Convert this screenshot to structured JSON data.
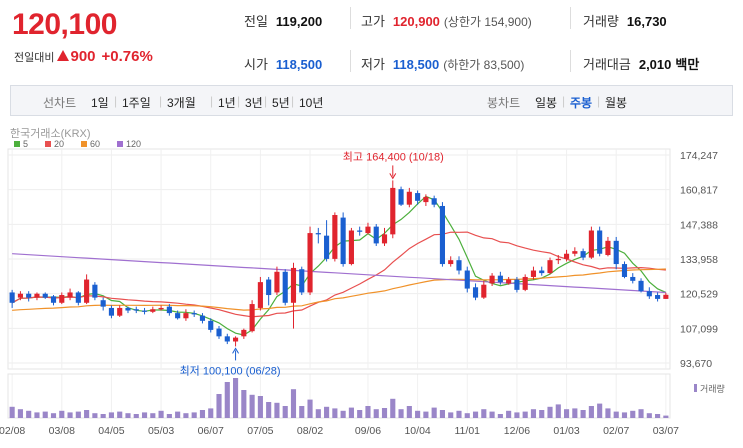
{
  "quote": {
    "price": "120,100",
    "change_label": "전일대비",
    "change": "900",
    "change_pct": "+0.76%"
  },
  "stats": {
    "prev_label": "전일",
    "prev": "119,200",
    "high_label": "고가",
    "high": "120,900",
    "upper_limit": "(상한가 154,900)",
    "volume_label": "거래량",
    "volume": "16,730",
    "open_label": "시가",
    "open": "118,500",
    "low_label": "저가",
    "low": "118,500",
    "lower_limit": "(하한가 83,500)",
    "amount_label": "거래대금",
    "amount": "2,010",
    "amount_unit": "백만"
  },
  "toolbar": {
    "line_chart_label": "선차트",
    "periods": [
      "1일",
      "1주일",
      "3개월",
      "1년",
      "3년",
      "5년",
      "10년"
    ],
    "candle_label": "봉차트",
    "candles": [
      "일봉",
      "주봉",
      "월봉"
    ],
    "active_candle": "주봉"
  },
  "colors": {
    "up": "#e0242e",
    "down": "#1a5fd0",
    "ma5": "#4caf3c",
    "ma20": "#e85050",
    "ma60": "#f0922a",
    "ma120": "#a070d0"
  },
  "chart_data": {
    "type": "candlestick",
    "source_label": "한국거래소(KRX)",
    "legend": [
      {
        "name": "5",
        "color": "#4caf3c"
      },
      {
        "name": "20",
        "color": "#e85050"
      },
      {
        "name": "60",
        "color": "#f0922a"
      },
      {
        "name": "120",
        "color": "#a070d0"
      }
    ],
    "volume_legend": "거래량",
    "y_ticks": [
      "174,247",
      "160,817",
      "147,388",
      "133,958",
      "120,529",
      "107,099",
      "93,670"
    ],
    "ylim": [
      93670,
      174247
    ],
    "x_ticks": [
      "02/08",
      "03/08",
      "04/05",
      "05/03",
      "06/07",
      "07/05",
      "08/02",
      "09/06",
      "10/04",
      "11/01",
      "12/06",
      "01/03",
      "02/07",
      "03/07"
    ],
    "max_annotation": "최고 164,400 (10/18)",
    "min_annotation": "최저 100,100 (06/28)",
    "candles": [
      [
        121000,
        117000,
        122000,
        115000
      ],
      [
        119000,
        120500,
        121500,
        118000
      ],
      [
        120500,
        119000,
        121500,
        117500
      ],
      [
        119000,
        120500,
        121000,
        118000
      ],
      [
        120500,
        119000,
        121000,
        118500
      ],
      [
        119500,
        117000,
        120000,
        116000
      ],
      [
        117000,
        120000,
        121000,
        116500
      ],
      [
        119000,
        121000,
        122500,
        118000
      ],
      [
        121000,
        117000,
        121500,
        116000
      ],
      [
        117000,
        126000,
        128000,
        116500
      ],
      [
        124000,
        119000,
        125000,
        118000
      ],
      [
        118000,
        115500,
        119000,
        114000
      ],
      [
        115000,
        112000,
        116000,
        111000
      ],
      [
        112000,
        115000,
        116000,
        111500
      ],
      [
        115000,
        114000,
        115500,
        113000
      ],
      [
        114500,
        114000,
        115500,
        113000
      ],
      [
        114000,
        113500,
        115000,
        112500
      ],
      [
        113500,
        114500,
        115500,
        113000
      ],
      [
        114500,
        115000,
        116000,
        114000
      ],
      [
        115500,
        113000,
        116500,
        112000
      ],
      [
        113000,
        111000,
        114000,
        110500
      ],
      [
        111000,
        113000,
        114500,
        110000
      ],
      [
        113000,
        112500,
        114000,
        111500
      ],
      [
        112000,
        110000,
        113000,
        109000
      ],
      [
        110000,
        106500,
        111000,
        105500
      ],
      [
        107000,
        104000,
        108000,
        103000
      ],
      [
        104000,
        102000,
        105000,
        101000
      ],
      [
        102000,
        103500,
        104000,
        100100
      ],
      [
        104000,
        106500,
        107000,
        103000
      ],
      [
        106000,
        116500,
        118000,
        105500
      ],
      [
        115000,
        125000,
        127000,
        114000
      ],
      [
        126000,
        120000,
        127000,
        116000
      ],
      [
        121000,
        129000,
        131000,
        120000
      ],
      [
        129000,
        117000,
        130000,
        116000
      ],
      [
        117000,
        130500,
        132500,
        107000
      ],
      [
        130000,
        121000,
        131000,
        120000
      ],
      [
        121000,
        144000,
        146500,
        120000
      ],
      [
        144000,
        143500,
        146000,
        140000
      ],
      [
        143000,
        134000,
        149000,
        133000
      ],
      [
        134000,
        151000,
        152000,
        133000
      ],
      [
        150000,
        132000,
        152000,
        131000
      ],
      [
        132000,
        145000,
        146000,
        131500
      ],
      [
        145000,
        144500,
        146500,
        143000
      ],
      [
        144000,
        146500,
        148000,
        143500
      ],
      [
        146500,
        140000,
        147500,
        139000
      ],
      [
        140000,
        143500,
        146000,
        139000
      ],
      [
        143500,
        161500,
        164400,
        142000
      ],
      [
        161000,
        155000,
        162000,
        154500
      ],
      [
        155000,
        160000,
        161500,
        154000
      ],
      [
        159500,
        156500,
        160500,
        155000
      ],
      [
        156000,
        158000,
        159000,
        154500
      ],
      [
        157500,
        155000,
        158500,
        154000
      ],
      [
        154500,
        132000,
        156000,
        131000
      ],
      [
        132000,
        133500,
        135000,
        131000
      ],
      [
        133500,
        129500,
        135000,
        128000
      ],
      [
        129500,
        122500,
        131000,
        121000
      ],
      [
        123000,
        119000,
        124500,
        118000
      ],
      [
        119000,
        124000,
        125500,
        118500
      ],
      [
        124500,
        127500,
        128500,
        123500
      ],
      [
        127500,
        125000,
        129000,
        124000
      ],
      [
        124500,
        126000,
        127000,
        124000
      ],
      [
        126000,
        122000,
        127000,
        121000
      ],
      [
        122000,
        127000,
        128000,
        121500
      ],
      [
        127000,
        129500,
        131000,
        126000
      ],
      [
        129500,
        128500,
        131000,
        127500
      ],
      [
        128500,
        133500,
        134500,
        128000
      ],
      [
        133500,
        134000,
        135500,
        132000
      ],
      [
        134000,
        136000,
        137500,
        133000
      ],
      [
        136000,
        137000,
        138500,
        135000
      ],
      [
        137000,
        134500,
        138000,
        133500
      ],
      [
        134500,
        145000,
        146500,
        134000
      ],
      [
        145000,
        136000,
        146500,
        135000
      ],
      [
        135500,
        141000,
        142500,
        135000
      ],
      [
        141000,
        132000,
        142500,
        130000
      ],
      [
        132000,
        127000,
        133000,
        126500
      ],
      [
        127000,
        125500,
        128500,
        124500
      ],
      [
        125500,
        121500,
        126500,
        121000
      ],
      [
        121500,
        119500,
        123000,
        118500
      ],
      [
        120000,
        118500,
        121000,
        117500
      ],
      [
        118500,
        120100,
        120900,
        118500
      ]
    ],
    "volumes": [
      28,
      22,
      18,
      14,
      16,
      12,
      18,
      14,
      16,
      20,
      12,
      10,
      14,
      16,
      12,
      10,
      14,
      12,
      18,
      10,
      16,
      12,
      14,
      20,
      24,
      60,
      90,
      100,
      70,
      58,
      55,
      40,
      38,
      30,
      72,
      30,
      46,
      22,
      28,
      24,
      18,
      26,
      20,
      30,
      22,
      25,
      48,
      22,
      30,
      18,
      16,
      26,
      20,
      14,
      18,
      12,
      16,
      22,
      16,
      10,
      18,
      14,
      16,
      22,
      20,
      28,
      34,
      22,
      24,
      20,
      30,
      36,
      24,
      16,
      14,
      18,
      22,
      12,
      10,
      6
    ],
    "volume_max": 100
  }
}
